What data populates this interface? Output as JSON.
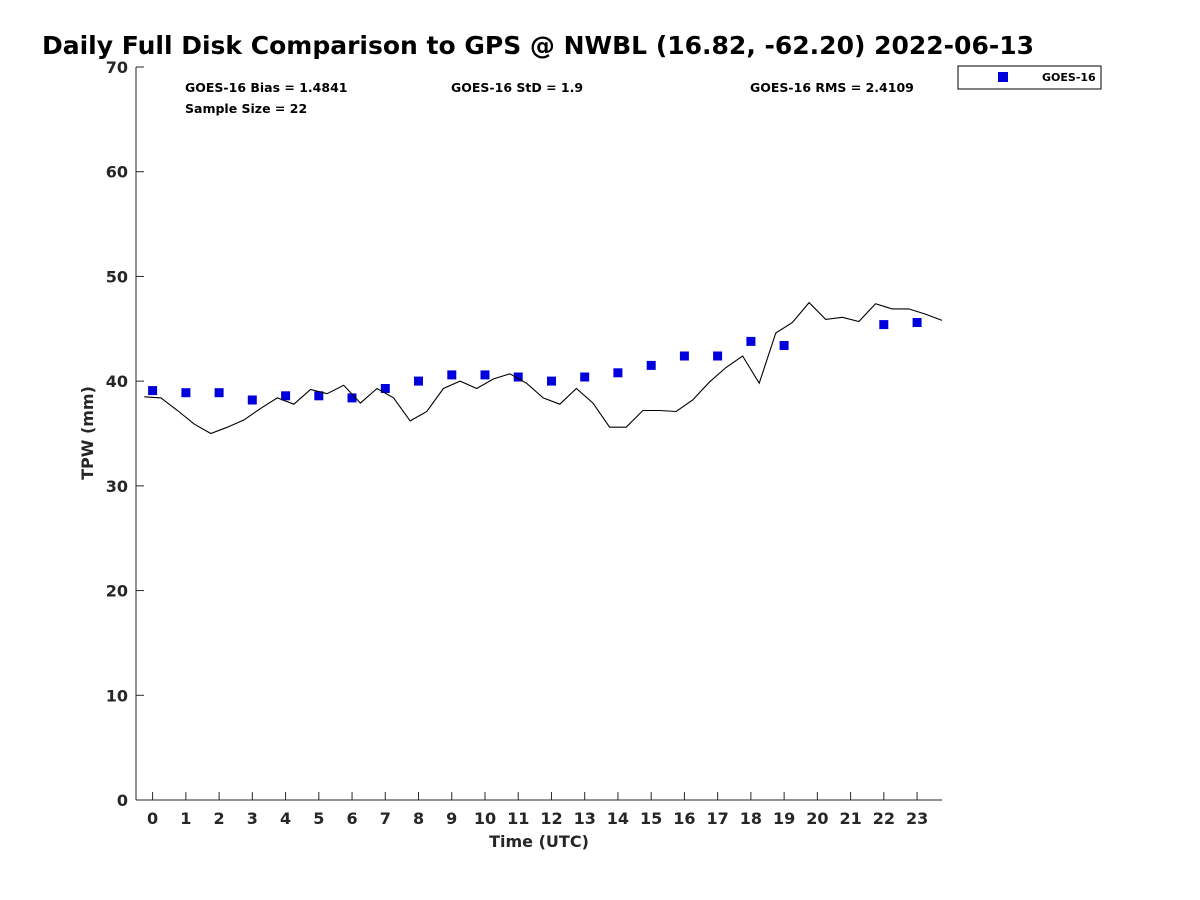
{
  "chart_data": {
    "type": "scatter",
    "title": "Daily Full Disk Comparison to GPS @ NWBL (16.82, -62.20) 2022-06-13",
    "xlabel": "Time (UTC)",
    "ylabel": "TPW (mm)",
    "xlim": [
      -0.5,
      23.75
    ],
    "ylim": [
      0,
      70
    ],
    "x_ticks": [
      0,
      1,
      2,
      3,
      4,
      5,
      6,
      7,
      8,
      9,
      10,
      11,
      12,
      13,
      14,
      15,
      16,
      17,
      18,
      19,
      20,
      21,
      22,
      23
    ],
    "x_tick_labels": [
      "0",
      "1",
      "2",
      "3",
      "4",
      "5",
      "6",
      "7",
      "8",
      "9",
      "10",
      "11",
      "12",
      "13",
      "14",
      "15",
      "16",
      "17",
      "18",
      "19",
      "20",
      "21",
      "22",
      "23"
    ],
    "y_ticks": [
      0,
      10,
      20,
      30,
      40,
      50,
      60,
      70
    ],
    "y_tick_labels": [
      "0",
      "10",
      "20",
      "30",
      "40",
      "50",
      "60",
      "70"
    ],
    "grid": false,
    "legend_position": "outside-top-right",
    "stats": {
      "bias": "GOES-16 Bias = 1.4841",
      "std": "GOES-16 StD = 1.9",
      "rms": "GOES-16 RMS = 2.4109",
      "sample": "Sample Size = 22"
    },
    "series": [
      {
        "name": "GOES-16",
        "kind": "scatter",
        "marker": "square",
        "color": "#0000dd",
        "x": [
          0,
          1,
          2,
          3,
          4,
          5,
          6,
          7,
          8,
          9,
          10,
          11,
          12,
          13,
          14,
          15,
          16,
          17,
          18,
          19,
          22,
          23
        ],
        "y": [
          39.1,
          38.9,
          38.9,
          38.2,
          38.6,
          38.6,
          38.4,
          39.3,
          40.0,
          40.6,
          40.6,
          40.4,
          40.0,
          40.4,
          40.8,
          41.5,
          42.4,
          42.4,
          43.8,
          43.4,
          45.4,
          45.6
        ]
      },
      {
        "kind": "line",
        "color": "#000000",
        "x": [
          -0.25,
          0.25,
          0.75,
          1.25,
          1.75,
          2.25,
          2.75,
          3.25,
          3.75,
          4.25,
          4.75,
          5.25,
          5.75,
          6.25,
          6.75,
          7.25,
          7.75,
          8.25,
          8.75,
          9.25,
          9.75,
          10.25,
          10.75,
          11.25,
          11.75,
          12.25,
          12.75,
          13.25,
          13.75,
          14.25,
          14.75,
          15.25,
          15.75,
          16.25,
          16.75,
          17.25,
          17.75,
          18.25,
          18.75,
          19.25,
          19.75,
          20.25,
          20.75,
          21.25,
          21.75,
          22.25,
          22.75,
          23.25,
          23.75
        ],
        "y": [
          38.5,
          38.4,
          37.2,
          35.9,
          35.0,
          35.6,
          36.3,
          37.4,
          38.4,
          37.8,
          39.2,
          38.8,
          39.6,
          37.9,
          39.3,
          38.4,
          36.2,
          37.1,
          39.3,
          40.0,
          39.3,
          40.2,
          40.7,
          39.8,
          38.4,
          37.8,
          39.3,
          37.9,
          35.6,
          35.6,
          37.2,
          37.2,
          37.1,
          38.2,
          39.9,
          41.3,
          42.4,
          39.8,
          44.6,
          45.6,
          47.5,
          45.9,
          46.1,
          45.7,
          47.4,
          46.9,
          46.9,
          46.4,
          45.8
        ]
      }
    ]
  }
}
